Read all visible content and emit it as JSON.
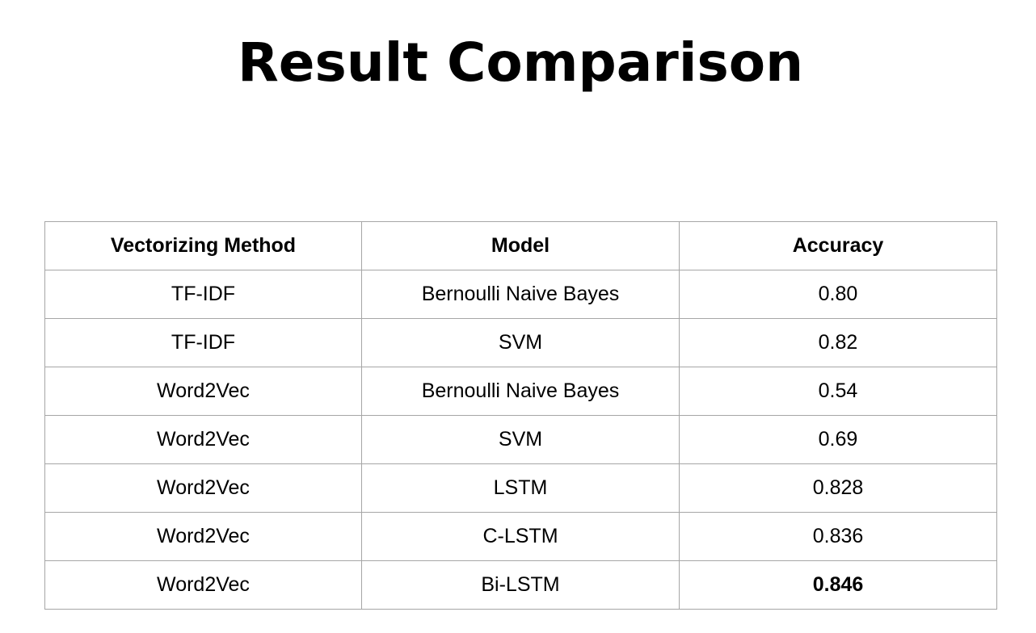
{
  "title": "Result Comparison",
  "table": {
    "headers": [
      "Vectorizing Method",
      "Model",
      "Accuracy"
    ],
    "rows": [
      [
        "TF-IDF",
        "Bernoulli Naive Bayes",
        "0.80"
      ],
      [
        "TF-IDF",
        "SVM",
        "0.82"
      ],
      [
        "Word2Vec",
        "Bernoulli Naive Bayes",
        "0.54"
      ],
      [
        "Word2Vec",
        "SVM",
        "0.69"
      ],
      [
        "Word2Vec",
        "LSTM",
        "0.828"
      ],
      [
        "Word2Vec",
        "C-LSTM",
        "0.836"
      ],
      [
        "Word2Vec",
        "Bi-LSTM",
        "0.846"
      ]
    ]
  },
  "colors": {
    "grid": "#a6a6a6",
    "text": "#000000",
    "background": "#ffffff"
  }
}
